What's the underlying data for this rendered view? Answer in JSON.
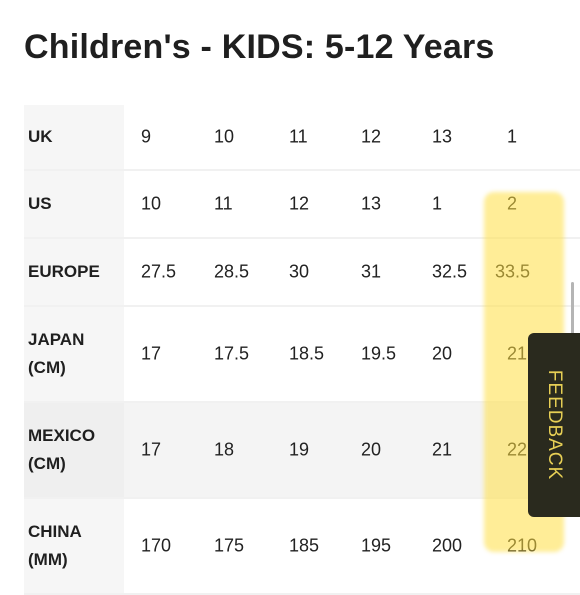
{
  "page_title": "Children's - KIDS: 5-12 Years",
  "rows": [
    {
      "label": "UK",
      "values": [
        "9",
        "10",
        "11",
        "12",
        "13",
        "1"
      ]
    },
    {
      "label": "US",
      "values": [
        "10",
        "11",
        "12",
        "13",
        "1",
        "2"
      ]
    },
    {
      "label": "EUROPE",
      "values": [
        "27.5",
        "28.5",
        "30",
        "31",
        "32.5",
        "33.5"
      ]
    },
    {
      "label": "JAPAN (CM)",
      "values": [
        "17",
        "17.5",
        "18.5",
        "19.5",
        "20",
        "21"
      ]
    },
    {
      "label": "MEXICO (CM)",
      "values": [
        "17",
        "18",
        "19",
        "20",
        "21",
        "22"
      ]
    },
    {
      "label": "CHINA (MM)",
      "values": [
        "170",
        "175",
        "185",
        "195",
        "200",
        "210"
      ]
    }
  ],
  "feedback_label": "FEEDBACK",
  "colors": {
    "highlight": "#ffde42",
    "feedback_bg": "#2a2a1e",
    "feedback_text": "#e7cf55"
  }
}
